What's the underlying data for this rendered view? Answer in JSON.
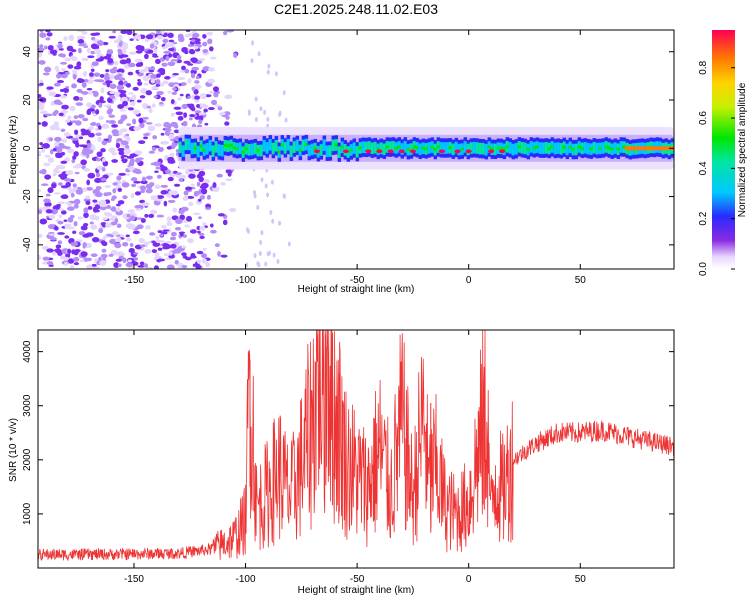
{
  "chart_data": [
    {
      "type": "heatmap",
      "title": "C2E1.2025.248.11.02.E03",
      "xlabel": "Height of straight line (km)",
      "ylabel": "Frequency (Hz)",
      "xlim": [
        -193,
        92
      ],
      "ylim": [
        -50,
        49
      ],
      "xticks": [
        -150,
        -100,
        -50,
        0,
        50
      ],
      "yticks": [
        -40,
        -20,
        0,
        20,
        40
      ],
      "colorbar": {
        "label": "Normalized spectral amplitude",
        "range": [
          0.0,
          0.95
        ],
        "ticks": [
          0.0,
          0.2,
          0.4,
          0.6,
          0.8
        ]
      },
      "features": [
        {
          "name": "noise-region",
          "x_range": [
            -193,
            -113
          ],
          "freq_range": [
            -50,
            49
          ],
          "amplitude": 0.1
        },
        {
          "name": "signal-band",
          "x_range": [
            -130,
            92
          ],
          "center_freq": 0,
          "half_width_hz": 4,
          "peak_amplitude": 0.95
        }
      ]
    },
    {
      "type": "line",
      "title": "",
      "xlabel": "Height of straight line (km)",
      "ylabel": "SNR (10 * v/v)",
      "xlim": [
        -193,
        92
      ],
      "ylim": [
        0,
        4400
      ],
      "xticks": [
        -150,
        -100,
        -50,
        0,
        50
      ],
      "yticks": [
        1000,
        2000,
        3000,
        4000
      ],
      "color": "#ee3333",
      "series": [
        {
          "name": "SNR",
          "x": [
            -190,
            -170,
            -150,
            -130,
            -115,
            -105,
            -100,
            -98,
            -95,
            -90,
            -85,
            -80,
            -75,
            -70,
            -67,
            -65,
            -63,
            -61,
            -59,
            -55,
            -50,
            -45,
            -40,
            -35,
            -30,
            -25,
            -20,
            -18,
            -15,
            -10,
            -5,
            0,
            5,
            8,
            10,
            12,
            15,
            20,
            30,
            40,
            50,
            60,
            70,
            80,
            92
          ],
          "values": [
            250,
            250,
            260,
            270,
            350,
            550,
            900,
            3750,
            1100,
            1400,
            1800,
            1300,
            1900,
            2700,
            4000,
            3300,
            4350,
            2900,
            2800,
            2000,
            1700,
            1500,
            2200,
            1400,
            2700,
            1300,
            2900,
            1500,
            1900,
            1100,
            1000,
            1200,
            2300,
            2900,
            1000,
            1700,
            1400,
            2000,
            2300,
            2500,
            2500,
            2550,
            2450,
            2350,
            2250
          ],
          "spikes": [
            {
              "x": -98,
              "value": 3850
            },
            {
              "x": -64,
              "value": 4100
            },
            {
              "x": -61,
              "value": 4350
            },
            {
              "x": -58,
              "value": 3600
            },
            {
              "x": -17,
              "value": 3050
            },
            {
              "x": 7,
              "value": 3000
            }
          ]
        }
      ]
    }
  ],
  "colors": {
    "line": "#ee3333",
    "noise": "#7a2cf0",
    "background": "#ffffff"
  }
}
